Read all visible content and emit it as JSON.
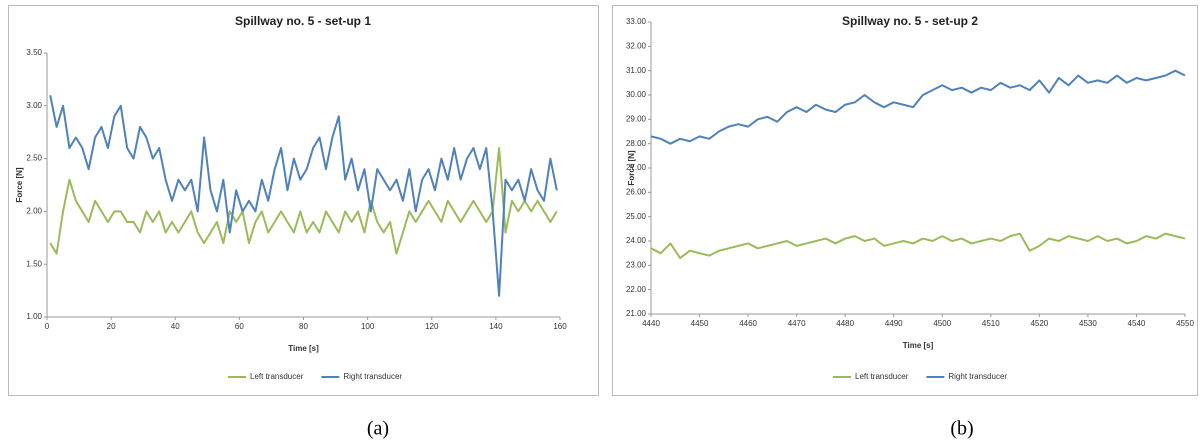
{
  "chart_data": [
    {
      "type": "line",
      "title": "Spillway no. 5 - set-up 1",
      "x_label": "Time [s]",
      "y_label": "Force [N]",
      "caption": "(a)",
      "x": [
        1,
        3,
        5,
        7,
        9,
        11,
        13,
        15,
        17,
        19,
        21,
        23,
        25,
        27,
        29,
        31,
        33,
        35,
        37,
        39,
        41,
        43,
        45,
        47,
        49,
        51,
        53,
        55,
        57,
        59,
        61,
        63,
        65,
        67,
        69,
        71,
        73,
        75,
        77,
        79,
        81,
        83,
        85,
        87,
        89,
        91,
        93,
        95,
        97,
        99,
        101,
        103,
        105,
        107,
        109,
        111,
        113,
        115,
        117,
        119,
        121,
        123,
        125,
        127,
        129,
        131,
        133,
        135,
        137,
        139,
        141,
        143,
        145,
        147,
        149,
        151,
        153,
        155,
        157,
        159
      ],
      "series": [
        {
          "name": "Left transducer",
          "color": "#9bbb59",
          "values": [
            1.7,
            1.6,
            2.0,
            2.3,
            2.1,
            2.0,
            1.9,
            2.1,
            2.0,
            1.9,
            2.0,
            2.0,
            1.9,
            1.9,
            1.8,
            2.0,
            1.9,
            2.0,
            1.8,
            1.9,
            1.8,
            1.9,
            2.0,
            1.8,
            1.7,
            1.8,
            1.9,
            1.7,
            2.0,
            1.9,
            2.0,
            1.7,
            1.9,
            2.0,
            1.8,
            1.9,
            2.0,
            1.9,
            1.8,
            2.0,
            1.8,
            1.9,
            1.8,
            2.0,
            1.9,
            1.8,
            2.0,
            1.9,
            2.0,
            1.8,
            2.1,
            1.9,
            1.8,
            1.9,
            1.6,
            1.8,
            2.0,
            1.9,
            2.0,
            2.1,
            2.0,
            1.9,
            2.1,
            2.0,
            1.9,
            2.0,
            2.1,
            2.0,
            1.9,
            2.0,
            2.6,
            1.8,
            2.1,
            2.0,
            2.1,
            2.0,
            2.1,
            2.0,
            1.9,
            2.0
          ]
        },
        {
          "name": "Right transducer",
          "color": "#4f81bd",
          "values": [
            3.1,
            2.8,
            3.0,
            2.6,
            2.7,
            2.6,
            2.4,
            2.7,
            2.8,
            2.6,
            2.9,
            3.0,
            2.6,
            2.5,
            2.8,
            2.7,
            2.5,
            2.6,
            2.3,
            2.1,
            2.3,
            2.2,
            2.3,
            2.0,
            2.7,
            2.2,
            2.0,
            2.3,
            1.8,
            2.2,
            2.0,
            2.1,
            2.0,
            2.3,
            2.1,
            2.4,
            2.6,
            2.2,
            2.5,
            2.3,
            2.4,
            2.6,
            2.7,
            2.4,
            2.7,
            2.9,
            2.3,
            2.5,
            2.2,
            2.4,
            2.0,
            2.4,
            2.3,
            2.2,
            2.3,
            2.1,
            2.4,
            2.0,
            2.3,
            2.4,
            2.2,
            2.5,
            2.3,
            2.6,
            2.3,
            2.5,
            2.6,
            2.4,
            2.6,
            2.0,
            1.2,
            2.3,
            2.2,
            2.3,
            2.1,
            2.4,
            2.2,
            2.1,
            2.5,
            2.2
          ]
        }
      ],
      "xlim": [
        0,
        160
      ],
      "xticks": [
        0,
        20,
        40,
        60,
        80,
        100,
        120,
        140,
        160
      ],
      "ylim": [
        1,
        3.5
      ],
      "yticks": [
        {
          "value": 1,
          "label": "1.00"
        },
        {
          "value": 1.5,
          "label": "1.50"
        },
        {
          "value": 2,
          "label": "2.00"
        },
        {
          "value": 2.5,
          "label": "2.50"
        },
        {
          "value": 3,
          "label": "3.00"
        },
        {
          "value": 3.5,
          "label": "3.50"
        }
      ],
      "grid": false,
      "legend": "bottom"
    },
    {
      "type": "line",
      "title": "Spillway no. 5 - set-up 2",
      "x_label": "Time [s]",
      "y_label": "Force [N]",
      "caption": "(b)",
      "x": [
        4440,
        4442,
        4444,
        4446,
        4448,
        4450,
        4452,
        4454,
        4456,
        4458,
        4460,
        4462,
        4464,
        4466,
        4468,
        4470,
        4472,
        4474,
        4476,
        4478,
        4480,
        4482,
        4484,
        4486,
        4488,
        4490,
        4492,
        4494,
        4496,
        4498,
        4500,
        4502,
        4504,
        4506,
        4508,
        4510,
        4512,
        4514,
        4516,
        4518,
        4520,
        4522,
        4524,
        4526,
        4528,
        4530,
        4532,
        4534,
        4536,
        4538,
        4540,
        4542,
        4544,
        4546,
        4548,
        4550
      ],
      "series": [
        {
          "name": "Left transducer",
          "color": "#9bbb59",
          "values": [
            23.7,
            23.5,
            23.9,
            23.3,
            23.6,
            23.5,
            23.4,
            23.6,
            23.7,
            23.8,
            23.9,
            23.7,
            23.8,
            23.9,
            24.0,
            23.8,
            23.9,
            24.0,
            24.1,
            23.9,
            24.1,
            24.2,
            24.0,
            24.1,
            23.8,
            23.9,
            24.0,
            23.9,
            24.1,
            24.0,
            24.2,
            24.0,
            24.1,
            23.9,
            24.0,
            24.1,
            24.0,
            24.2,
            24.3,
            23.6,
            23.8,
            24.1,
            24.0,
            24.2,
            24.1,
            24.0,
            24.2,
            24.0,
            24.1,
            23.9,
            24.0,
            24.2,
            24.1,
            24.3,
            24.2,
            24.1
          ]
        },
        {
          "name": "Right transducer",
          "color": "#4f81bd",
          "values": [
            28.3,
            28.2,
            28.0,
            28.2,
            28.1,
            28.3,
            28.2,
            28.5,
            28.7,
            28.8,
            28.7,
            29.0,
            29.1,
            28.9,
            29.3,
            29.5,
            29.3,
            29.6,
            29.4,
            29.3,
            29.6,
            29.7,
            30.0,
            29.7,
            29.5,
            29.7,
            29.6,
            29.5,
            30.0,
            30.2,
            30.4,
            30.2,
            30.3,
            30.1,
            30.3,
            30.2,
            30.5,
            30.3,
            30.4,
            30.2,
            30.6,
            30.1,
            30.7,
            30.4,
            30.8,
            30.5,
            30.6,
            30.5,
            30.8,
            30.5,
            30.7,
            30.6,
            30.7,
            30.8,
            31.0,
            30.8
          ]
        }
      ],
      "xlim": [
        4440,
        4550
      ],
      "xticks": [
        4440,
        4450,
        4460,
        4470,
        4480,
        4490,
        4500,
        4510,
        4520,
        4530,
        4540,
        4550
      ],
      "ylim": [
        21,
        33
      ],
      "yticks": [
        {
          "value": 21,
          "label": "21.00"
        },
        {
          "value": 22,
          "label": "22.00"
        },
        {
          "value": 23,
          "label": "23.00"
        },
        {
          "value": 24,
          "label": "24.00"
        },
        {
          "value": 25,
          "label": "25.00"
        },
        {
          "value": 26,
          "label": "26.00"
        },
        {
          "value": 27,
          "label": "27.00"
        },
        {
          "value": 28,
          "label": "28.00"
        },
        {
          "value": 29,
          "label": "29.00"
        },
        {
          "value": 30,
          "label": "30.00"
        },
        {
          "value": 31,
          "label": "31.00"
        },
        {
          "value": 32,
          "label": "32.00"
        },
        {
          "value": 33,
          "label": "33.00"
        }
      ],
      "grid": false,
      "legend": "bottom"
    }
  ]
}
